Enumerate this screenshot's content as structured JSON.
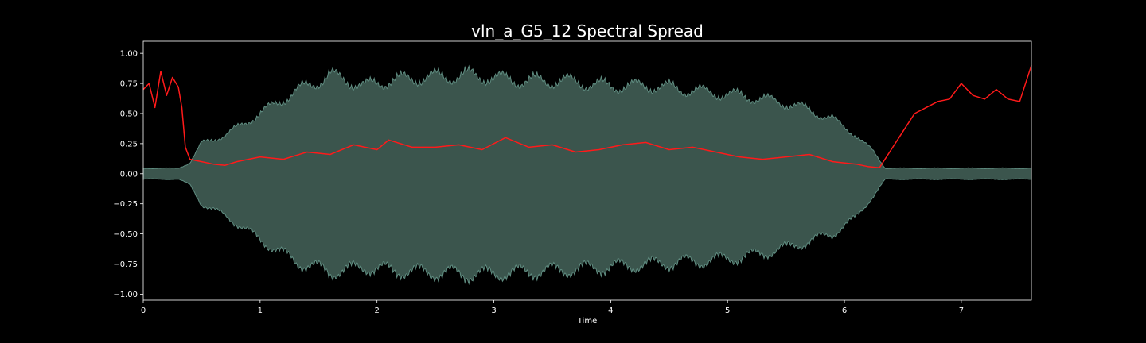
{
  "chart_data": {
    "type": "line",
    "title": "vln_a_G5_12 Spectral Spread",
    "xlabel": "Time",
    "ylabel": "",
    "xlim": [
      0,
      7.6
    ],
    "ylim": [
      -1.05,
      1.1
    ],
    "x_ticks": [
      0,
      1,
      2,
      3,
      4,
      5,
      6,
      7
    ],
    "x_tick_labels": [
      "0",
      "1",
      "2",
      "3",
      "4",
      "5",
      "6",
      "7"
    ],
    "y_ticks": [
      1.0,
      0.75,
      0.5,
      0.25,
      0.0,
      -0.25,
      -0.5,
      -0.75,
      -1.0
    ],
    "y_tick_labels": [
      "1.00",
      "0.75",
      "0.50",
      "0.25",
      "0.00",
      "−0.25",
      "−0.50",
      "−0.75",
      "−1.00"
    ],
    "grid": false,
    "background": "#000000",
    "waveform": {
      "fill_color": "#3b554d",
      "edge_color": "#5f8c80",
      "envelope_time": [
        0.0,
        0.3,
        0.4,
        0.5,
        0.7,
        1.0,
        1.3,
        1.6,
        1.9,
        2.1,
        2.4,
        2.8,
        3.2,
        3.6,
        4.0,
        4.4,
        4.8,
        5.2,
        5.6,
        5.9,
        6.1,
        6.25,
        6.35,
        7.0,
        7.6
      ],
      "envelope_upper": [
        0.05,
        0.05,
        0.1,
        0.28,
        0.35,
        0.55,
        0.75,
        0.9,
        0.8,
        0.85,
        0.88,
        0.9,
        0.85,
        0.85,
        0.8,
        0.8,
        0.75,
        0.7,
        0.62,
        0.5,
        0.35,
        0.2,
        0.05,
        0.05,
        0.05
      ],
      "envelope_lower": [
        -0.05,
        -0.05,
        -0.1,
        -0.28,
        -0.38,
        -0.6,
        -0.8,
        -0.9,
        -0.85,
        -0.88,
        -0.9,
        -0.92,
        -0.9,
        -0.88,
        -0.85,
        -0.82,
        -0.8,
        -0.75,
        -0.65,
        -0.55,
        -0.4,
        -0.2,
        -0.05,
        -0.05,
        -0.05
      ]
    },
    "series": [
      {
        "color": "#ff1a1a",
        "x": [
          0.0,
          0.05,
          0.1,
          0.15,
          0.2,
          0.25,
          0.3,
          0.33,
          0.36,
          0.4,
          0.5,
          0.6,
          0.7,
          0.8,
          1.0,
          1.2,
          1.4,
          1.6,
          1.8,
          2.0,
          2.1,
          2.3,
          2.5,
          2.7,
          2.9,
          3.1,
          3.3,
          3.5,
          3.7,
          3.9,
          4.1,
          4.3,
          4.5,
          4.7,
          4.9,
          5.1,
          5.3,
          5.5,
          5.7,
          5.9,
          6.1,
          6.2,
          6.3,
          6.4,
          6.5,
          6.6,
          6.7,
          6.8,
          6.9,
          7.0,
          7.1,
          7.2,
          7.3,
          7.4,
          7.5,
          7.6
        ],
        "y": [
          0.7,
          0.75,
          0.55,
          0.85,
          0.65,
          0.8,
          0.72,
          0.55,
          0.22,
          0.12,
          0.1,
          0.08,
          0.07,
          0.1,
          0.14,
          0.12,
          0.18,
          0.16,
          0.24,
          0.2,
          0.28,
          0.22,
          0.22,
          0.24,
          0.2,
          0.3,
          0.22,
          0.24,
          0.18,
          0.2,
          0.24,
          0.26,
          0.2,
          0.22,
          0.18,
          0.14,
          0.12,
          0.14,
          0.16,
          0.1,
          0.08,
          0.06,
          0.05,
          0.2,
          0.35,
          0.5,
          0.55,
          0.6,
          0.62,
          0.75,
          0.65,
          0.62,
          0.7,
          0.62,
          0.6,
          0.9
        ]
      }
    ]
  }
}
